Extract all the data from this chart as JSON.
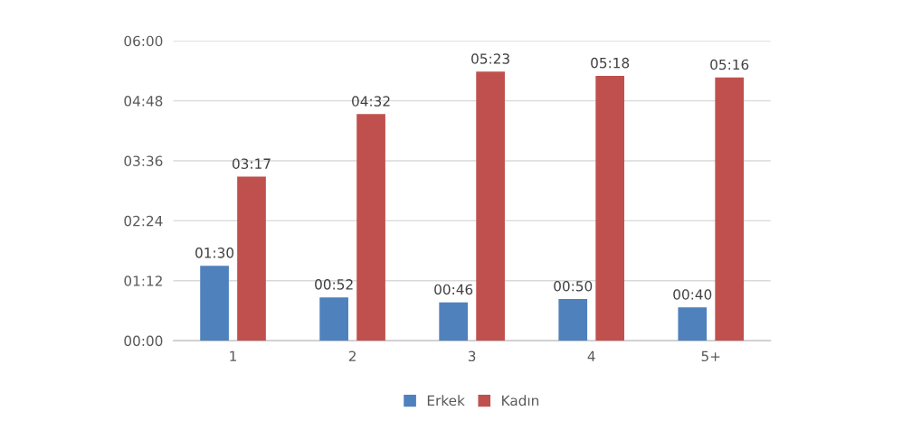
{
  "chart_data": {
    "type": "bar",
    "categories": [
      "1",
      "2",
      "3",
      "4",
      "5+"
    ],
    "series": [
      {
        "name": "Erkek",
        "color": "#4f81bd",
        "values": [
          90,
          52,
          46,
          50,
          40
        ],
        "value_labels": [
          "01:30",
          "00:52",
          "00:46",
          "00:50",
          "00:40"
        ]
      },
      {
        "name": "Kadın",
        "color": "#c0504d",
        "values": [
          197,
          272,
          323,
          318,
          316
        ],
        "value_labels": [
          "03:17",
          "04:32",
          "05:23",
          "05:18",
          "05:16"
        ]
      }
    ],
    "ylim": [
      0,
      360
    ],
    "yticks": [
      {
        "value": 0,
        "label": "00:00"
      },
      {
        "value": 72,
        "label": "01:12"
      },
      {
        "value": 144,
        "label": "02:24"
      },
      {
        "value": 216,
        "label": "03:36"
      },
      {
        "value": 288,
        "label": "04:48"
      },
      {
        "value": 360,
        "label": "06:00"
      }
    ],
    "grid": "y",
    "legend": "bottom"
  }
}
